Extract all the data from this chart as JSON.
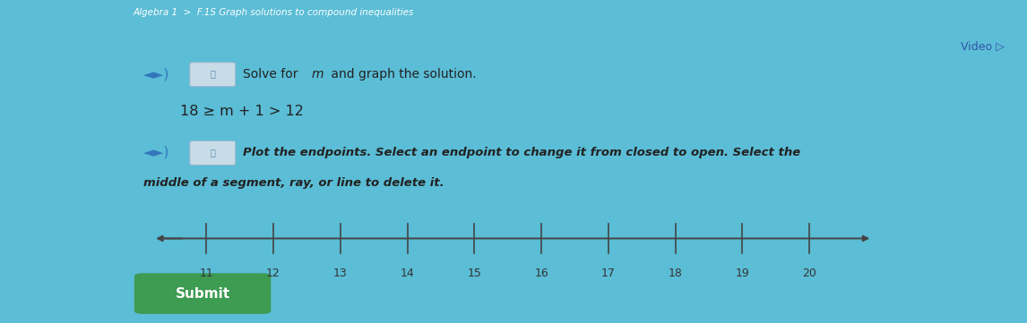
{
  "bg_outer": "#5bbdd6",
  "bg_inner": "#e0ece8",
  "title_bar_color": "#4aafc5",
  "breadcrumb_text": "Algebra 1  >  F.1S Graph solutions to compound inequalities",
  "video_text": "Video ▷",
  "solve_text_1": "◄►)",
  "solve_text_2": "Solve for ",
  "solve_m": "m",
  "solve_text_3": " and graph the solution.",
  "equation": "18 ≥ m + 1 > 12",
  "plot_text_1": "◄►)",
  "plot_text_2": "Plot the endpoints. Select an endpoint to change it from closed to open. Select the",
  "plot_text_3": "middle of a segment, ray, or line to delete it.",
  "number_line_min": 10.4,
  "number_line_max": 20.8,
  "tick_labels": [
    11,
    12,
    13,
    14,
    15,
    16,
    17,
    18,
    19,
    20
  ],
  "submit_text": "Submit",
  "submit_color": "#3d9b52",
  "submit_text_color": "#ffffff",
  "line_color": "#444444",
  "tick_color": "#444444",
  "label_color": "#333333",
  "text_color": "#222222",
  "icon_bg": "#c8dce8",
  "icon_border": "#9ab8cc",
  "speaker_color": "#3377bb",
  "video_color": "#3355aa"
}
